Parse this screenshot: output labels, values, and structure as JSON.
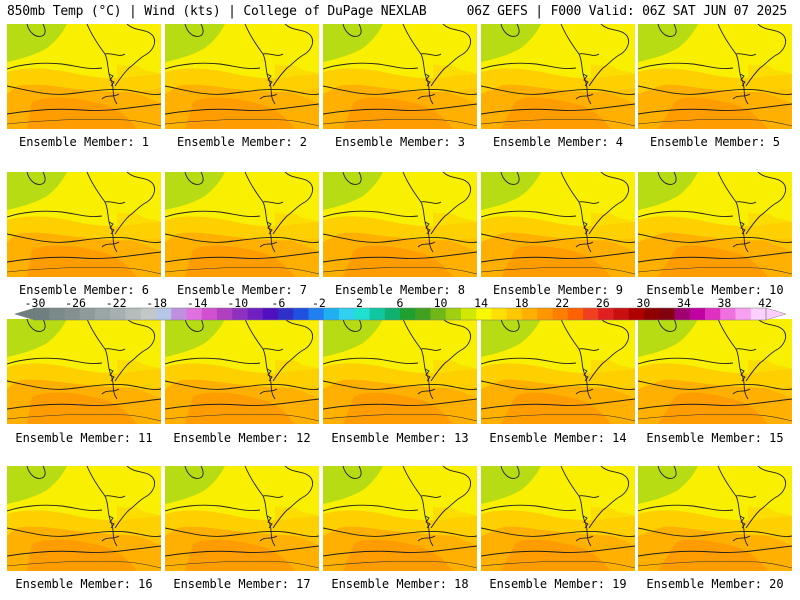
{
  "header": {
    "left": "850mb Temp (°C) | Wind (kts) | College of DuPage NEXLAB",
    "right": "06Z GEFS | F000 Valid: 06Z SAT JUN 07 2025"
  },
  "panels": [
    {
      "label": "Ensemble Member: 1"
    },
    {
      "label": "Ensemble Member: 2"
    },
    {
      "label": "Ensemble Member: 3"
    },
    {
      "label": "Ensemble Member: 4"
    },
    {
      "label": "Ensemble Member: 5"
    },
    {
      "label": "Ensemble Member: 6"
    },
    {
      "label": "Ensemble Member: 7"
    },
    {
      "label": "Ensemble Member: 8"
    },
    {
      "label": "Ensemble Member: 9"
    },
    {
      "label": "Ensemble Member: 10"
    },
    {
      "label": "Ensemble Member: 11"
    },
    {
      "label": "Ensemble Member: 12"
    },
    {
      "label": "Ensemble Member: 13"
    },
    {
      "label": "Ensemble Member: 14"
    },
    {
      "label": "Ensemble Member: 15"
    },
    {
      "label": "Ensemble Member: 16"
    },
    {
      "label": "Ensemble Member: 17"
    },
    {
      "label": "Ensemble Member: 18"
    },
    {
      "label": "Ensemble Member: 19"
    },
    {
      "label": "Ensemble Member: 20"
    }
  ],
  "colorbar": {
    "ticks": [
      "-30",
      "-26",
      "-22",
      "-18",
      "-14",
      "-10",
      "-6",
      "-2",
      "2",
      "6",
      "10",
      "14",
      "18",
      "22",
      "26",
      "30",
      "34",
      "38",
      "42"
    ],
    "colors": [
      "#6f7f7f",
      "#7a8a8a",
      "#858f8f",
      "#8f9a9a",
      "#9aa5a5",
      "#a6b0b0",
      "#b4bcbc",
      "#c2c8c8",
      "#b5c6e6",
      "#c090e0",
      "#e070e0",
      "#d050d0",
      "#b040c0",
      "#9030c0",
      "#7020c0",
      "#5010c0",
      "#3030c8",
      "#2050e0",
      "#2080f0",
      "#20b0f0",
      "#30d0f0",
      "#20e0d0",
      "#10c8a0",
      "#10b070",
      "#20a030",
      "#40a020",
      "#70b818",
      "#a0d010",
      "#d0e800",
      "#f8f800",
      "#ffe000",
      "#ffc800",
      "#ffb000",
      "#ff9800",
      "#ff8000",
      "#ff6000",
      "#f04020",
      "#e02020",
      "#c81010",
      "#b00000",
      "#900000",
      "#800010",
      "#a00070",
      "#c000a0",
      "#e030c0",
      "#f070e0",
      "#f8a0f0",
      "#fcd0fc"
    ]
  },
  "map_colors": {
    "green": "#b8dc14",
    "yellow": "#f8f000",
    "lightorange": "#ffd000",
    "orange": "#ffb000",
    "darkorange": "#ff9800",
    "outline": "#202020"
  }
}
